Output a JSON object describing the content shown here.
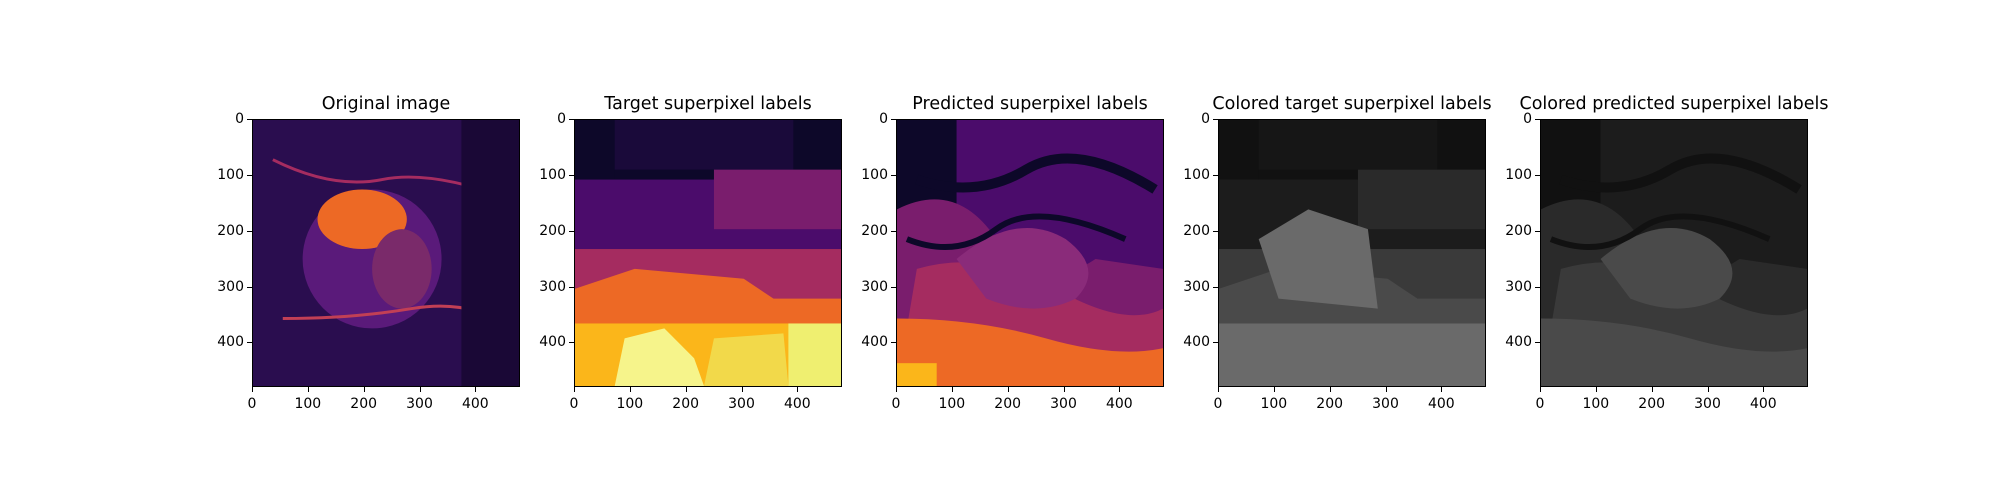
{
  "figure": {
    "panels": [
      {
        "title": "Original image",
        "kind": "original"
      },
      {
        "title": "Target superpixel labels",
        "kind": "target"
      },
      {
        "title": "Predicted superpixel labels",
        "kind": "predicted"
      },
      {
        "title": "Colored target superpixel labels",
        "kind": "target-gray"
      },
      {
        "title": "Colored predicted superpixel labels",
        "kind": "predicted-gray"
      }
    ],
    "axis": {
      "yticks": [
        "0",
        "100",
        "200",
        "300",
        "400"
      ],
      "xticks": [
        "0",
        "100",
        "200",
        "300",
        "400"
      ]
    },
    "colors": {
      "inferno_dark": "#0d0829",
      "inferno_purple": "#4b0c6b",
      "inferno_magenta": "#a52c60",
      "inferno_orange": "#ed6925",
      "inferno_yellow": "#fbb61a",
      "inferno_light": "#f6f48b",
      "gray_dark": "#111111",
      "gray_mid": "#3a3a3a",
      "gray_light": "#6a6a6a"
    }
  }
}
